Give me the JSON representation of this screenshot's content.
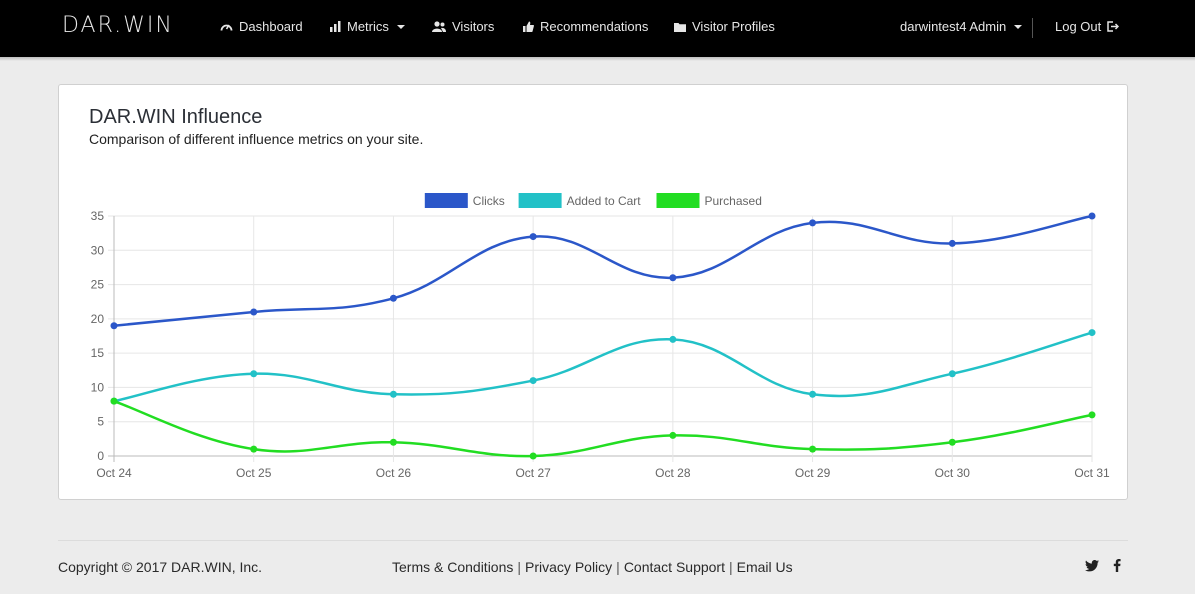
{
  "brand": "DAR.WIN",
  "nav": {
    "dashboard": "Dashboard",
    "metrics": "Metrics",
    "visitors": "Visitors",
    "recommendations": "Recommendations",
    "visitor_profiles": "Visitor Profiles",
    "user": "darwintest4 Admin",
    "logout": "Log Out"
  },
  "panel": {
    "title": "DAR.WIN Influence",
    "subtitle": "Comparison of different influence metrics on your site."
  },
  "chart_data": {
    "type": "line",
    "categories": [
      "Oct 24",
      "Oct 25",
      "Oct 26",
      "Oct 27",
      "Oct 28",
      "Oct 29",
      "Oct 30",
      "Oct 31"
    ],
    "series": [
      {
        "name": "Clicks",
        "color": "#2b57c9",
        "values": [
          19,
          21,
          23,
          32,
          26,
          34,
          31,
          35
        ]
      },
      {
        "name": "Added to Cart",
        "color": "#22c1c7",
        "values": [
          8,
          12,
          9,
          11,
          17,
          9,
          12,
          18
        ]
      },
      {
        "name": "Purchased",
        "color": "#22dd22",
        "values": [
          8,
          1,
          2,
          0,
          3,
          1,
          2,
          6
        ]
      }
    ],
    "ylim": [
      0,
      35
    ],
    "yticks": [
      0,
      5,
      10,
      15,
      20,
      25,
      30,
      35
    ],
    "grid": true,
    "legend_position": "top-center"
  },
  "footer": {
    "copyright": "Copyright © 2017 DAR.WIN, Inc.",
    "terms": "Terms & Conditions",
    "privacy": "Privacy Policy",
    "contact": "Contact Support",
    "email": "Email Us",
    "separator": "|"
  }
}
